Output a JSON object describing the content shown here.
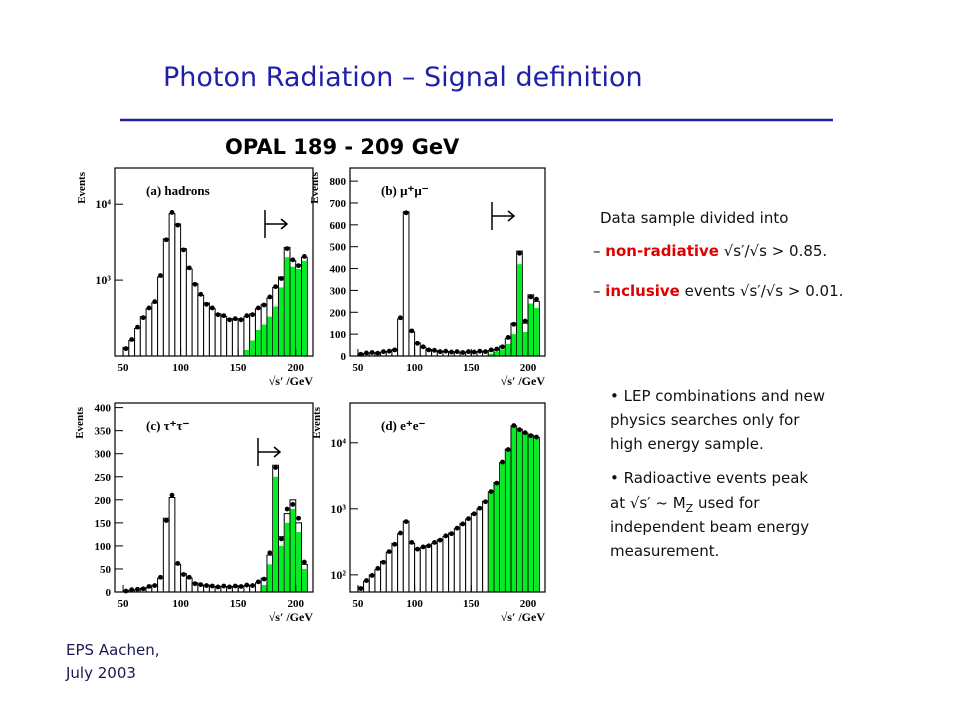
{
  "title": "Photon Radiation – Signal definition",
  "plot_title": "OPAL 189 - 209 GeV",
  "panels": [
    {
      "type": "histogram",
      "label": "(a) hadrons",
      "ylabel": "Events",
      "xlabel": "√s′ /GeV",
      "log": true,
      "bins": [
        50,
        55,
        60,
        65,
        70,
        75,
        80,
        85,
        90,
        95,
        100,
        105,
        110,
        115,
        120,
        125,
        130,
        135,
        140,
        145,
        150,
        155,
        160,
        165,
        170,
        175,
        180,
        185,
        190,
        195,
        200,
        205,
        210
      ],
      "xlim": [
        43,
        215
      ],
      "xticks": [
        50,
        100,
        150,
        200
      ],
      "ylim": [
        100,
        30000
      ],
      "yticks": [
        {
          "value": 1000,
          "label": "10³"
        },
        {
          "value": 10000,
          "label": "10⁴"
        }
      ],
      "histogram": {
        "color": "#ffffff",
        "values": [
          130,
          160,
          230,
          330,
          420,
          500,
          1100,
          3500,
          7500,
          5500,
          2600,
          1400,
          900,
          630,
          500,
          420,
          360,
          330,
          310,
          300,
          310,
          330,
          360,
          420,
          480,
          580,
          800,
          1100,
          2700,
          1800,
          1600,
          2000
        ]
      },
      "signal": {
        "color": "#00ee22",
        "values": [
          null,
          null,
          null,
          null,
          null,
          null,
          null,
          null,
          null,
          null,
          null,
          null,
          null,
          null,
          null,
          null,
          null,
          null,
          null,
          null,
          null,
          120,
          160,
          220,
          260,
          330,
          450,
          800,
          2000,
          1500,
          1400,
          1800
        ]
      },
      "data": {
        "color": "#000000",
        "values": [
          125,
          165,
          240,
          320,
          430,
          520,
          1150,
          3400,
          7800,
          5300,
          2500,
          1450,
          880,
          650,
          480,
          430,
          350,
          340,
          300,
          310,
          300,
          340,
          350,
          430,
          470,
          600,
          820,
          1050,
          2600,
          1850,
          1550,
          2050
        ]
      }
    },
    {
      "type": "histogram",
      "label": "(b) μ⁺μ⁻",
      "ylabel": "Events",
      "xlabel": "√s′ /GeV",
      "log": false,
      "bins": [
        50,
        55,
        60,
        65,
        70,
        75,
        80,
        85,
        90,
        95,
        100,
        105,
        110,
        115,
        120,
        125,
        130,
        135,
        140,
        145,
        150,
        155,
        160,
        165,
        170,
        175,
        180,
        185,
        190,
        195,
        200,
        205,
        210
      ],
      "xlim": [
        43,
        215
      ],
      "xticks": [
        50,
        100,
        150,
        200
      ],
      "ylim": [
        0,
        860
      ],
      "yticks": [
        0,
        100,
        200,
        300,
        400,
        500,
        600,
        700,
        800
      ],
      "histogram": {
        "color": "#ffffff",
        "values": [
          10,
          12,
          15,
          15,
          18,
          20,
          30,
          170,
          660,
          110,
          60,
          40,
          30,
          25,
          22,
          20,
          20,
          18,
          18,
          18,
          20,
          20,
          22,
          25,
          30,
          45,
          80,
          150,
          480,
          150,
          280,
          250
        ]
      },
      "signal": {
        "color": "#00ee22",
        "values": [
          null,
          null,
          null,
          null,
          null,
          null,
          null,
          null,
          null,
          null,
          null,
          null,
          null,
          null,
          null,
          null,
          null,
          null,
          null,
          null,
          null,
          null,
          null,
          10,
          20,
          30,
          55,
          100,
          420,
          110,
          240,
          220
        ]
      },
      "data": {
        "color": "#000000",
        "values": [
          8,
          14,
          16,
          13,
          20,
          22,
          28,
          175,
          655,
          115,
          58,
          42,
          28,
          26,
          20,
          22,
          18,
          20,
          16,
          20,
          18,
          22,
          20,
          28,
          32,
          42,
          85,
          145,
          470,
          160,
          270,
          260
        ]
      }
    },
    {
      "type": "histogram",
      "label": "(c) τ⁺τ⁻",
      "ylabel": "Events",
      "xlabel": "√s′ /GeV",
      "log": false,
      "bins": [
        50,
        55,
        60,
        65,
        70,
        75,
        80,
        85,
        90,
        95,
        100,
        105,
        110,
        115,
        120,
        125,
        130,
        135,
        140,
        145,
        150,
        155,
        160,
        165,
        170,
        175,
        180,
        185,
        190,
        195,
        200,
        205,
        210
      ],
      "xlim": [
        43,
        215
      ],
      "xticks": [
        50,
        100,
        150,
        200
      ],
      "ylim": [
        0,
        410
      ],
      "yticks": [
        0,
        50,
        100,
        150,
        200,
        250,
        300,
        350,
        400
      ],
      "histogram": {
        "color": "#ffffff",
        "values": [
          3,
          4,
          5,
          8,
          10,
          15,
          30,
          160,
          205,
          60,
          40,
          30,
          20,
          15,
          15,
          12,
          12,
          12,
          12,
          12,
          12,
          14,
          15,
          20,
          30,
          80,
          275,
          120,
          170,
          200,
          150,
          60
        ]
      },
      "signal": {
        "color": "#00ee22",
        "values": [
          null,
          null,
          null,
          null,
          null,
          null,
          null,
          null,
          null,
          null,
          null,
          null,
          null,
          null,
          null,
          null,
          null,
          null,
          null,
          null,
          null,
          null,
          null,
          null,
          15,
          60,
          250,
          100,
          150,
          180,
          130,
          50
        ]
      },
      "data": {
        "color": "#000000",
        "values": [
          2,
          5,
          6,
          7,
          12,
          14,
          32,
          155,
          210,
          62,
          38,
          32,
          18,
          16,
          14,
          13,
          11,
          13,
          11,
          13,
          12,
          15,
          14,
          22,
          28,
          85,
          270,
          115,
          180,
          190,
          160,
          65
        ]
      }
    },
    {
      "type": "histogram",
      "label": "(d) e⁺e⁻",
      "ylabel": "Events",
      "xlabel": "√s′ /GeV",
      "log": true,
      "bins": [
        50,
        55,
        60,
        65,
        70,
        75,
        80,
        85,
        90,
        95,
        100,
        105,
        110,
        115,
        120,
        125,
        130,
        135,
        140,
        145,
        150,
        155,
        160,
        165,
        170,
        175,
        180,
        185,
        190,
        195,
        200,
        205,
        210
      ],
      "xlim": [
        43,
        215
      ],
      "xticks": [
        50,
        100,
        150,
        200
      ],
      "ylim": [
        55,
        40000
      ],
      "yticks": [
        {
          "value": 100,
          "label": "10²"
        },
        {
          "value": 1000,
          "label": "10³"
        },
        {
          "value": 10000,
          "label": "10⁴"
        }
      ],
      "histogram": {
        "color": "#ffffff",
        "values": [
          65,
          80,
          100,
          120,
          160,
          220,
          300,
          420,
          650,
          300,
          250,
          260,
          280,
          300,
          340,
          380,
          430,
          500,
          600,
          700,
          850,
          1000,
          1300,
          1800,
          2500,
          5000,
          8000,
          18000,
          16000,
          14000,
          13000,
          12000
        ]
      },
      "signal": {
        "color": "#00ee22",
        "values": [
          null,
          null,
          null,
          null,
          null,
          null,
          null,
          null,
          null,
          null,
          null,
          null,
          null,
          null,
          null,
          null,
          null,
          null,
          null,
          null,
          null,
          null,
          null,
          1700,
          2400,
          4900,
          7800,
          17500,
          15500,
          13500,
          12500,
          11500
        ]
      },
      "data": {
        "color": "#000000",
        "values": [
          62,
          82,
          98,
          125,
          155,
          225,
          290,
          430,
          640,
          310,
          245,
          265,
          275,
          310,
          335,
          390,
          420,
          510,
          590,
          710,
          840,
          1020,
          1280,
          1820,
          2450,
          5100,
          7900,
          18200,
          15800,
          14200,
          12800,
          12200
        ]
      }
    }
  ],
  "intro": "Data sample divided into",
  "items": [
    {
      "highlight": "non-radiative",
      "rest": " √s′/√s > 0.85."
    },
    {
      "highlight": "inclusive",
      "rest": " events  √s′/√s > 0.01."
    }
  ],
  "bullets": [
    {
      "lines": [
        "LEP combinations and new",
        "physics searches only for",
        "high energy sample."
      ]
    },
    {
      "first": "Radioactive events peak",
      "second": "at √s′ ~ M",
      "sub": "Z",
      "after": "  used for",
      "lines": [
        "independent beam energy",
        "measurement."
      ]
    }
  ],
  "footer": [
    "EPS Aachen,",
    "July 2003"
  ]
}
